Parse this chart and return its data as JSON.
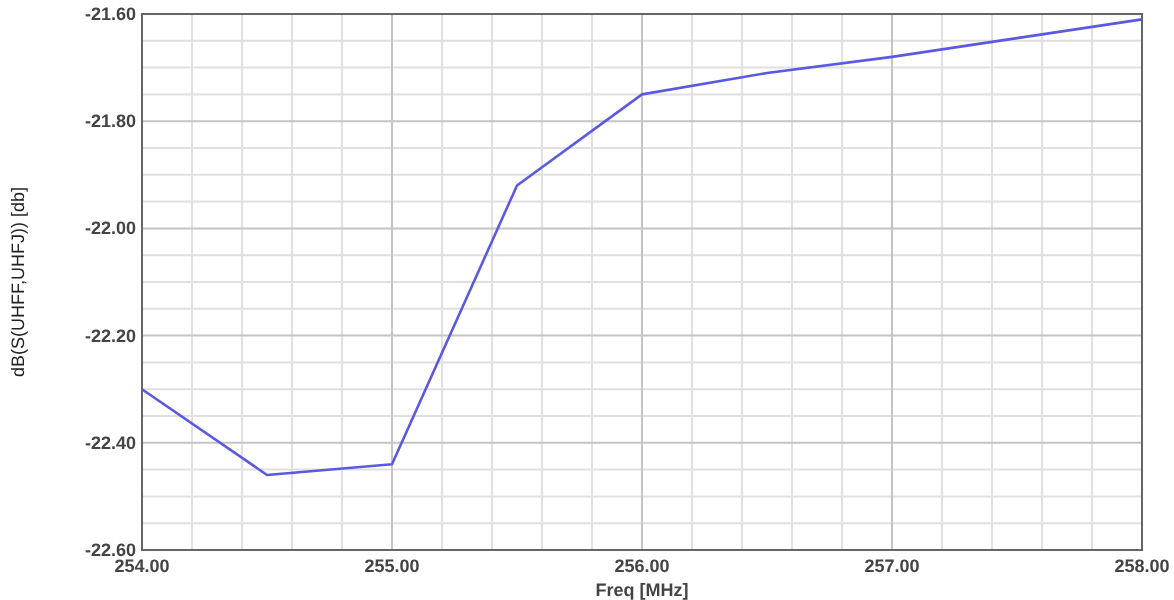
{
  "chart_data": {
    "type": "line",
    "xlabel": "Freq [MHz]",
    "ylabel": "dB(S(UHFF,UHFJ)) [db]",
    "x": [
      254,
      254.5,
      255,
      255.5,
      256,
      256.5,
      257,
      257.5,
      258
    ],
    "series": [
      {
        "color": "#5a5ae0",
        "values": [
          -22.3,
          -22.46,
          -22.44,
          -21.92,
          -21.75,
          -21.71,
          -21.68,
          -21.645,
          -21.61
        ]
      }
    ],
    "xlim": [
      254,
      258
    ],
    "xticks": [
      {
        "value": 254,
        "label": "254.00"
      },
      {
        "value": 255,
        "label": "255.00"
      },
      {
        "value": 256,
        "label": "256.00"
      },
      {
        "value": 257,
        "label": "257.00"
      },
      {
        "value": 258,
        "label": "258.00"
      }
    ],
    "ylim": [
      -22.6,
      -21.6
    ],
    "yticks": [
      {
        "value": -22.6,
        "label": "-22.60"
      },
      {
        "value": -22.4,
        "label": "-22.40"
      },
      {
        "value": -22.2,
        "label": "-22.20"
      },
      {
        "value": -22,
        "label": "-22.00"
      },
      {
        "value": -21.8,
        "label": "-21.80"
      },
      {
        "value": -21.6,
        "label": "-21.60"
      }
    ],
    "grid": true
  }
}
